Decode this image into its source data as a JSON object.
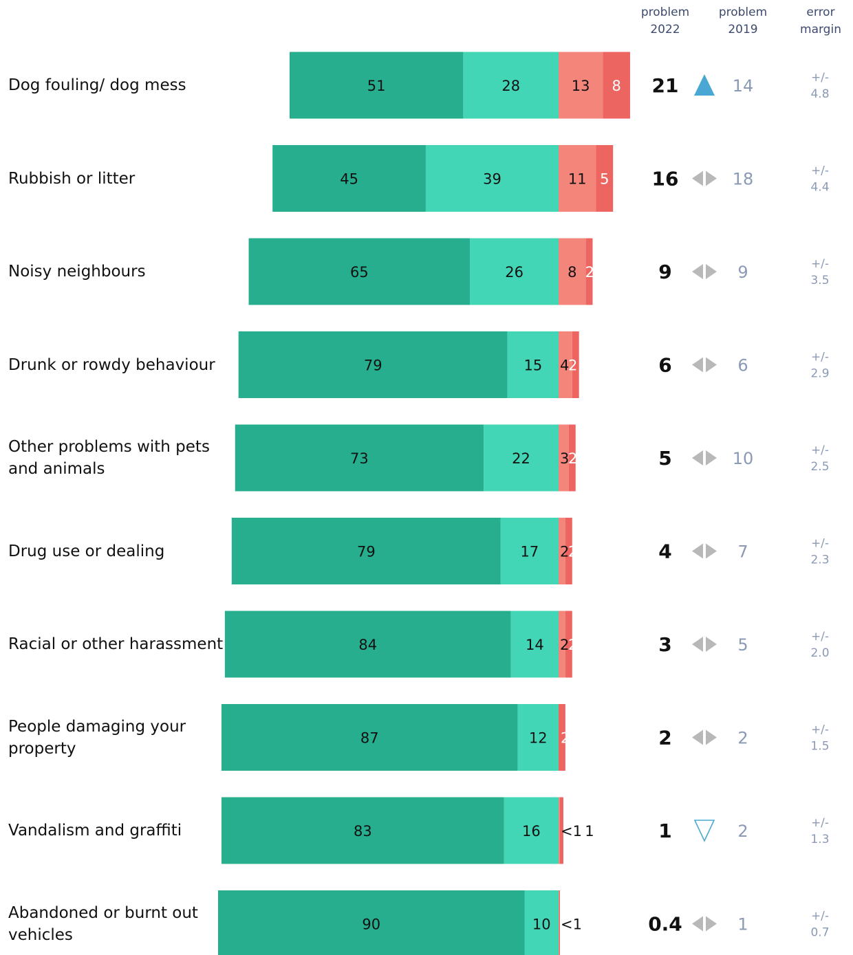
{
  "headers": {
    "problem_2022": "problem\n2022",
    "problem_2019": "problem\n2019",
    "error_margin": "error\nmargin"
  },
  "colors": {
    "not_a_problem_at_all": "#26ae8e",
    "not_very_big": "#42d6b6",
    "fairly_big": "#f4857b",
    "very_big": "#ed6560",
    "up_arrow": "#4aa7d4",
    "same_arrow": "#b8b8b8",
    "down_arrow": "#4aa7d4",
    "previous_value": "#8a9ab5",
    "margin_text": "#8a9ab5"
  },
  "chart_data": {
    "type": "bar",
    "orientation": "horizontal-diverging-stacked",
    "categories": [
      "Dog fouling/ dog mess",
      "Rubbish or litter",
      "Noisy neighbours",
      "Drunk or rowdy behaviour",
      "Other problems with pets and animals",
      "Drug use or dealing",
      "Racial or other harassment",
      "People damaging your property",
      "Vandalism and graffiti",
      "Abandoned or burnt out vehicles"
    ],
    "series": [
      {
        "values": [
          51,
          45,
          65,
          79,
          73,
          79,
          84,
          87,
          83,
          90
        ],
        "labels": [
          "51",
          "45",
          "65",
          "79",
          "73",
          "79",
          "84",
          "87",
          "83",
          "90"
        ]
      },
      {
        "values": [
          28,
          39,
          26,
          15,
          22,
          17,
          14,
          12,
          16,
          10
        ],
        "labels": [
          "28",
          "39",
          "26",
          "15",
          "22",
          "17",
          "14",
          "12",
          "16",
          "10"
        ]
      },
      {
        "values": [
          13,
          11,
          8,
          4,
          3,
          2,
          2,
          0,
          0.4,
          0.2
        ],
        "labels": [
          "13",
          "11",
          "8",
          "4",
          "3",
          "2",
          "2",
          "",
          "<1",
          "<1"
        ]
      },
      {
        "values": [
          8,
          5,
          2,
          2,
          2,
          2,
          2,
          2,
          1,
          0.2
        ],
        "labels": [
          "8",
          "5",
          "2",
          "2",
          "2",
          "2",
          "2",
          "2",
          "1",
          ""
        ]
      }
    ],
    "problem_2022": [
      "21",
      "16",
      "9",
      "6",
      "5",
      "4",
      "3",
      "2",
      "1",
      "0.4"
    ],
    "trend": [
      "up",
      "same",
      "same",
      "same",
      "same",
      "same",
      "same",
      "same",
      "down",
      "same"
    ],
    "problem_2019": [
      "14",
      "18",
      "9",
      "6",
      "10",
      "7",
      "5",
      "2",
      "2",
      "1"
    ],
    "error_margin": [
      "+/-\n4.8",
      "+/-\n4.4",
      "+/-\n3.5",
      "+/-\n2.9",
      "+/-\n2.5",
      "+/-\n2.3",
      "+/-\n2.0",
      "+/-\n1.5",
      "+/-\n1.3",
      "+/-\n0.7"
    ]
  }
}
